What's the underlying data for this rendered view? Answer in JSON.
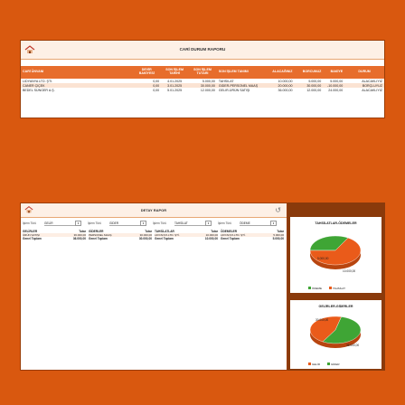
{
  "cari": {
    "title": "CARİ DURUM RAPORU",
    "headers": [
      "CARİ ÜNVANI",
      "DEVİR BAKİYESİ",
      "SON İŞLEM TARİHİ",
      "SON İŞLEM TUTARI",
      "SON İŞLEM TANIMI",
      "ALACAĞINIZ",
      "BORCUNUZ",
      "BAKİYE",
      "DURUM"
    ],
    "rows": [
      [
        "LIDYANYA LTD. ŞTİ.",
        "0,00",
        "4.01.2025",
        "5.000,00",
        "TAHSİLAT",
        "10.000,00",
        "5.000,00",
        "5.000,00",
        "ALACAKLIYIZ"
      ],
      [
        "CANER ÇİÇEK",
        "0,00",
        "3.01.2025",
        "30.000,00",
        "GİDER-PERSONEL MAAŞ",
        "20.000,00",
        "30.000,00",
        "-10.000,00",
        "BORÇLUYUZ"
      ],
      [
        "BEDEL SÜNGER A.Ş.",
        "0,00",
        "5.01.2025",
        "12.000,00",
        "GELİR-ÜRÜN SATIŞI",
        "36.000,00",
        "12.000,00",
        "24.000,00",
        "ALACAKLIYIZ"
      ]
    ]
  },
  "detay": {
    "title": "DETAY RAPOR",
    "filters": [
      {
        "label": "İşlem Türü",
        "value": "GELİR"
      },
      {
        "label": "İşlem Türü",
        "value": "GİDER"
      },
      {
        "label": "İşlem Türü",
        "value": "TAHSİLAT"
      },
      {
        "label": "İşlem Türü",
        "value": "ÖDEME"
      }
    ],
    "columns": [
      {
        "h1": "GELİRLER",
        "h2": "Tutar",
        "row": [
          "ÜRÜN SATIŞI",
          "36.000,00"
        ],
        "total_label": "Genel Toplam",
        "total": "36.000,00"
      },
      {
        "h1": "GİDERLER",
        "h2": "Tutar",
        "row": [
          "PERSONEL MAAŞ",
          "30.000,00"
        ],
        "total_label": "Genel Toplam",
        "total": "30.000,00"
      },
      {
        "h1": "TAHSİLATLAR",
        "h2": "Tutar",
        "row": [
          "LIDYANYA LTD. ŞTİ.",
          "10.000,00"
        ],
        "total_label": "Genel Toplam",
        "total": "10.000,00"
      },
      {
        "h1": "ÖDEMELER",
        "h2": "Tutar",
        "row": [
          "LIDYANYA LTD. ŞTİ.",
          "5.000,00"
        ],
        "total_label": "Genel Toplam",
        "total": "5.000,00"
      }
    ]
  },
  "charts": {
    "colors": {
      "green": "#3fa535",
      "orange": "#ea5b1a"
    },
    "tahsilat": {
      "title": "TAHSİLATLAR-ÖDEMELER",
      "label_a": "5.000,00",
      "label_b": "10.000,00",
      "legend_a": "ÖDEME",
      "legend_b": "TAHSİLAT",
      "value_a": 5000,
      "value_b": 10000
    },
    "gelir": {
      "title": "GELİRLER-GİDERLER",
      "label_a": "30.000,00",
      "label_b": "36.000,00",
      "legend_a": "GİDER",
      "legend_b": "GELİR",
      "value_a": 30000,
      "value_b": 36000
    }
  }
}
